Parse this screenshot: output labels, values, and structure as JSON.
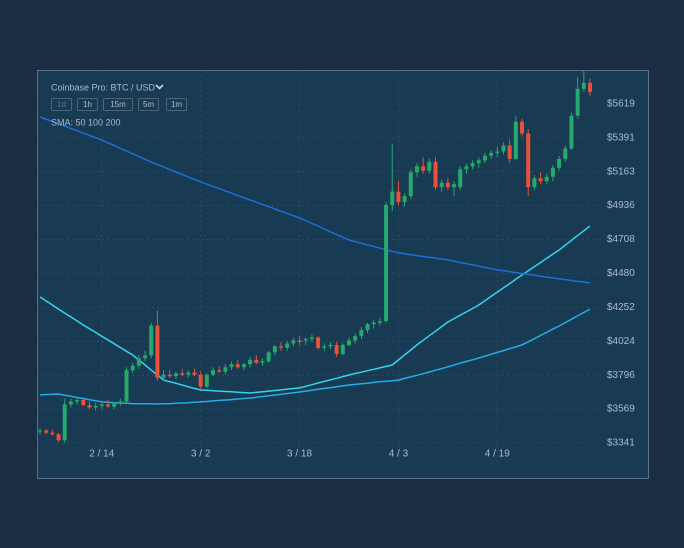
{
  "chart_data": {
    "type": "candlestick",
    "title": "Coinbase Pro: BTC / USD",
    "intervals": [
      "1d",
      "1h",
      "15m",
      "5m",
      "1m"
    ],
    "selected_interval": 0,
    "indicator_label": "SMA: 50 100 200",
    "up_color": "#26a96c",
    "down_color": "#e8513a",
    "grid": true,
    "categories": [
      null,
      null,
      null,
      null,
      null,
      null,
      null,
      null,
      null,
      null,
      "2 / 14",
      null,
      null,
      null,
      null,
      null,
      null,
      null,
      null,
      null,
      null,
      null,
      null,
      null,
      null,
      null,
      "3 / 2",
      null,
      null,
      null,
      null,
      null,
      null,
      null,
      null,
      null,
      null,
      null,
      null,
      null,
      null,
      null,
      "3 / 18",
      null,
      null,
      null,
      null,
      null,
      null,
      null,
      null,
      null,
      null,
      null,
      null,
      null,
      null,
      null,
      "4 / 3",
      null,
      null,
      null,
      null,
      null,
      null,
      null,
      null,
      null,
      null,
      null,
      null,
      null,
      null,
      null,
      "4 / 19",
      null,
      null,
      null,
      null,
      null,
      null,
      null,
      null,
      null,
      null,
      null,
      null,
      null,
      null,
      null
    ],
    "open": [
      3420,
      3425,
      3410,
      3400,
      3360,
      3600,
      3620,
      3630,
      3595,
      3580,
      3590,
      3600,
      3585,
      3605,
      3620,
      3830,
      3860,
      3910,
      3930,
      4130,
      3780,
      3800,
      3790,
      3810,
      3800,
      3815,
      3800,
      3720,
      3800,
      3830,
      3820,
      3850,
      3870,
      3850,
      3870,
      3900,
      3880,
      3890,
      3950,
      3990,
      3980,
      4010,
      4030,
      4030,
      4040,
      4050,
      3980,
      3990,
      4000,
      3940,
      4000,
      4030,
      4060,
      4100,
      4140,
      4150,
      4160,
      4940,
      5030,
      4960,
      5000,
      5160,
      5200,
      5170,
      5230,
      5060,
      5090,
      5060,
      5060,
      5180,
      5200,
      5220,
      5240,
      5270,
      5290,
      5300,
      5340,
      5250,
      5500,
      5420,
      5060,
      5120,
      5100,
      5130,
      5190,
      5250,
      5320,
      5540,
      5720,
      5760
    ],
    "high": [
      3440,
      3435,
      3430,
      3410,
      3640,
      3640,
      3640,
      3650,
      3620,
      3610,
      3620,
      3630,
      3615,
      3640,
      3850,
      3880,
      3930,
      3960,
      4150,
      4230,
      3830,
      3830,
      3820,
      3840,
      3830,
      3840,
      3820,
      3810,
      3850,
      3860,
      3870,
      3890,
      3900,
      3880,
      3920,
      3930,
      3910,
      3960,
      4000,
      4020,
      4030,
      4050,
      4060,
      4050,
      4070,
      4060,
      4010,
      4020,
      4020,
      4010,
      4050,
      4080,
      4120,
      4150,
      4170,
      4180,
      4960,
      5350,
      5100,
      5020,
      5180,
      5220,
      5260,
      5250,
      5260,
      5110,
      5120,
      5100,
      5200,
      5220,
      5240,
      5260,
      5290,
      5310,
      5330,
      5360,
      5380,
      5540,
      5520,
      5450,
      5140,
      5160,
      5150,
      5210,
      5270,
      5340,
      5560,
      5800,
      5840,
      5790
    ],
    "low": [
      3400,
      3400,
      3390,
      3350,
      3341,
      3580,
      3600,
      3590,
      3570,
      3560,
      3570,
      3580,
      3570,
      3590,
      3610,
      3810,
      3840,
      3890,
      3910,
      3760,
      3760,
      3780,
      3770,
      3790,
      3780,
      3790,
      3700,
      3710,
      3790,
      3810,
      3800,
      3830,
      3840,
      3830,
      3850,
      3870,
      3860,
      3880,
      3930,
      3960,
      3960,
      3990,
      4000,
      4000,
      4020,
      3970,
      3960,
      3970,
      3920,
      3930,
      3990,
      4010,
      4040,
      4080,
      4110,
      4130,
      4150,
      4900,
      4940,
      4930,
      4980,
      5130,
      5150,
      5150,
      5040,
      5030,
      5040,
      5000,
      5040,
      5150,
      5180,
      5190,
      5220,
      5250,
      5260,
      5280,
      5220,
      5240,
      5400,
      5000,
      5040,
      5080,
      5080,
      5100,
      5170,
      5230,
      5310,
      5520,
      5700,
      5670
    ],
    "close": [
      3425,
      3410,
      3400,
      3360,
      3600,
      3620,
      3630,
      3595,
      3580,
      3590,
      3600,
      3585,
      3605,
      3620,
      3830,
      3860,
      3910,
      3930,
      4130,
      3780,
      3800,
      3790,
      3810,
      3800,
      3815,
      3800,
      3720,
      3800,
      3830,
      3820,
      3850,
      3870,
      3850,
      3870,
      3900,
      3880,
      3890,
      3950,
      3990,
      3980,
      4010,
      4030,
      4020,
      4040,
      4050,
      3980,
      3990,
      4000,
      3940,
      4000,
      4030,
      4060,
      4100,
      4140,
      4150,
      4160,
      4940,
      5030,
      4960,
      5000,
      5160,
      5200,
      5170,
      5230,
      5060,
      5090,
      5060,
      5080,
      5180,
      5200,
      5220,
      5240,
      5270,
      5290,
      5300,
      5340,
      5250,
      5500,
      5420,
      5060,
      5120,
      5100,
      5130,
      5190,
      5250,
      5320,
      5540,
      5720,
      5760,
      5700
    ],
    "series": [
      {
        "color": "#35d3ee",
        "values": [
          4322,
          4295,
          4268,
          4241,
          4214,
          4188,
          4161,
          4134,
          4109,
          4084,
          4058,
          4033,
          4008,
          3983,
          3957,
          3932,
          3898,
          3865,
          3831,
          3798,
          3764,
          3753,
          3742,
          3731,
          3719,
          3708,
          3697,
          3695,
          3692,
          3690,
          3687,
          3685,
          3682,
          3680,
          3677,
          3681,
          3686,
          3690,
          3694,
          3698,
          3703,
          3707,
          3711,
          3722,
          3733,
          3744,
          3755,
          3765,
          3776,
          3787,
          3798,
          3808,
          3817,
          3827,
          3836,
          3846,
          3856,
          3865,
          3899,
          3933,
          3966,
          4000,
          4031,
          4062,
          4092,
          4123,
          4154,
          4177,
          4200,
          4222,
          4245,
          4268,
          4297,
          4326,
          4355,
          4384,
          4412,
          4441,
          4470,
          4498,
          4526,
          4554,
          4582,
          4610,
          4638,
          4670,
          4703,
          4735,
          4767,
          4799
        ]
      },
      {
        "color": "#22aee6",
        "values": [
          3664,
          3666,
          3668,
          3670,
          3662,
          3655,
          3647,
          3640,
          3632,
          3625,
          3617,
          3615,
          3612,
          3610,
          3608,
          3606,
          3605,
          3605,
          3604,
          3604,
          3605,
          3606,
          3608,
          3610,
          3612,
          3615,
          3617,
          3620,
          3624,
          3627,
          3630,
          3633,
          3637,
          3640,
          3643,
          3648,
          3653,
          3658,
          3663,
          3669,
          3674,
          3679,
          3684,
          3690,
          3696,
          3702,
          3708,
          3713,
          3719,
          3725,
          3731,
          3735,
          3739,
          3743,
          3748,
          3752,
          3756,
          3760,
          3764,
          3775,
          3786,
          3796,
          3807,
          3818,
          3830,
          3841,
          3853,
          3865,
          3877,
          3889,
          3900,
          3912,
          3925,
          3937,
          3950,
          3962,
          3975,
          3987,
          4000,
          4021,
          4042,
          4064,
          4085,
          4106,
          4127,
          4150,
          4173,
          4195,
          4218,
          4241
        ]
      },
      {
        "color": "#1c6fd6",
        "values": [
          5532,
          5516,
          5501,
          5485,
          5470,
          5454,
          5439,
          5423,
          5408,
          5392,
          5377,
          5358,
          5340,
          5321,
          5303,
          5284,
          5266,
          5247,
          5229,
          5212,
          5196,
          5179,
          5162,
          5145,
          5129,
          5112,
          5095,
          5080,
          5065,
          5050,
          5035,
          5019,
          5004,
          4989,
          4974,
          4959,
          4944,
          4929,
          4914,
          4898,
          4883,
          4868,
          4853,
          4835,
          4816,
          4798,
          4779,
          4761,
          4742,
          4724,
          4705,
          4694,
          4683,
          4672,
          4661,
          4650,
          4640,
          4629,
          4618,
          4612,
          4606,
          4600,
          4594,
          4589,
          4583,
          4577,
          4571,
          4563,
          4554,
          4546,
          4538,
          4529,
          4521,
          4512,
          4504,
          4498,
          4492,
          4486,
          4480,
          4474,
          4468,
          4462,
          4456,
          4450,
          4444,
          4439,
          4433,
          4427,
          4422,
          4416
        ]
      }
    ],
    "ylim": [
      3106,
      5847
    ],
    "yticks": [
      {
        "value": 3341,
        "label": "$3341"
      },
      {
        "value": 3569,
        "label": "$3569"
      },
      {
        "value": 3796,
        "label": "$3796"
      },
      {
        "value": 4024,
        "label": "$4024"
      },
      {
        "value": 4252,
        "label": "$4252"
      },
      {
        "value": 4480,
        "label": "$4480"
      },
      {
        "value": 4708,
        "label": "$4708"
      },
      {
        "value": 4936,
        "label": "$4936"
      },
      {
        "value": 5163,
        "label": "$5163"
      },
      {
        "value": 5391,
        "label": "$5391"
      },
      {
        "value": 5619,
        "label": "$5619"
      }
    ]
  }
}
